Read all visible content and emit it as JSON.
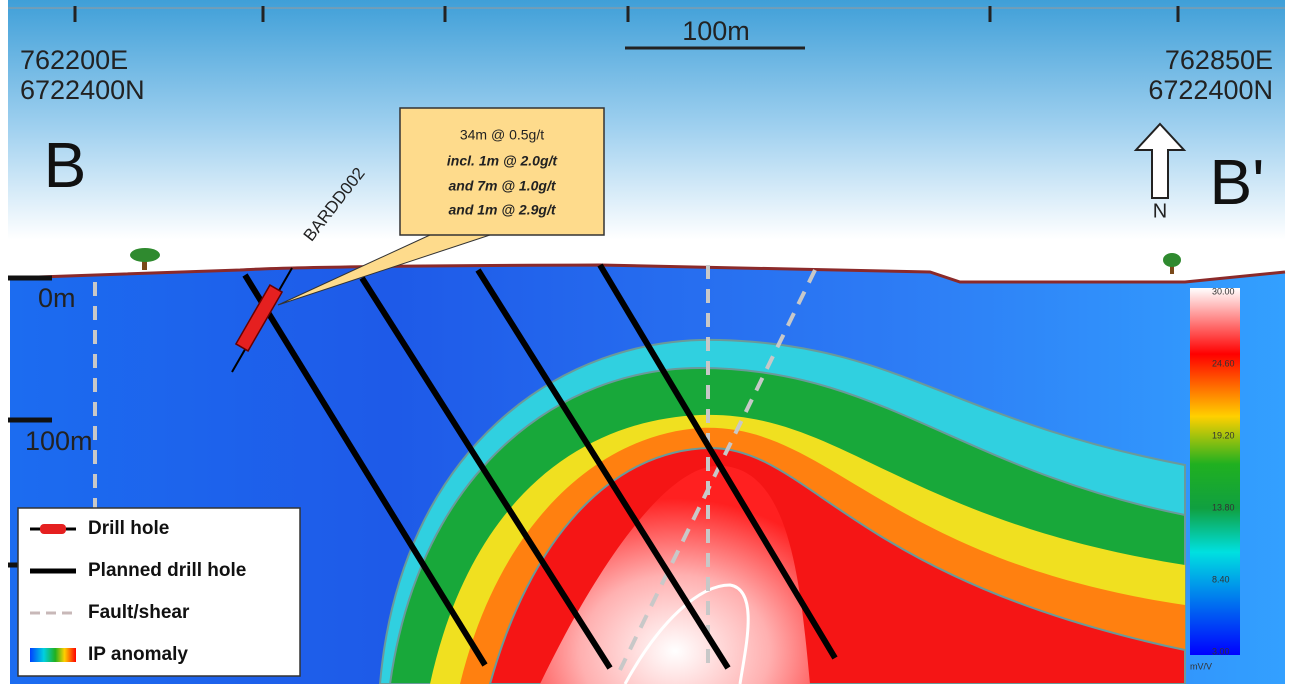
{
  "scale_bar": "100m",
  "start": {
    "easting": "762200E",
    "northing": "6722400N",
    "label": "B"
  },
  "end": {
    "easting": "762850E",
    "northing": "6722400N",
    "label": "B'",
    "north": "N"
  },
  "depth_labels": [
    "0m",
    "100m"
  ],
  "drill_hole": {
    "name": "BARDD002",
    "intercepts": [
      "34m @ 0.5g/t",
      "incl. 1m @ 2.0g/t",
      "and 7m @ 1.0g/t",
      "and 1m @ 2.9g/t"
    ]
  },
  "legend": [
    "Drill hole",
    "Planned drill hole",
    "Fault/shear",
    "IP anomaly"
  ],
  "colorbar": {
    "labels": [
      "30.00",
      "24.60",
      "19.20",
      "13.80",
      "8.40",
      "3.00"
    ],
    "unit": "mV/V"
  }
}
